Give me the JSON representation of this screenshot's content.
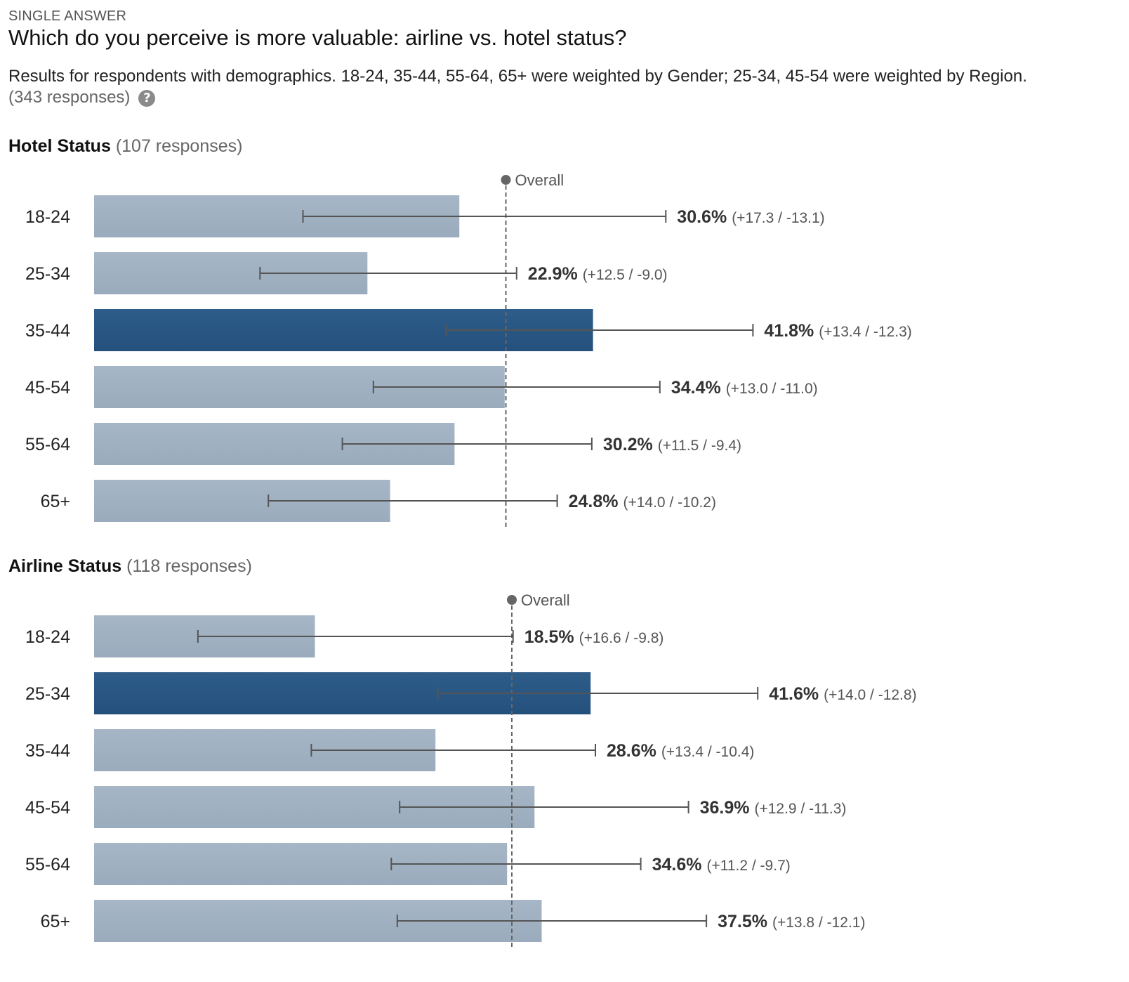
{
  "question": {
    "type_label": "SINGLE ANSWER",
    "title": "Which do you perceive is more valuable: airline vs. hotel status?",
    "description": "Results for respondents with demographics. 18-24, 35-44, 55-64, 65+ were weighted by Gender; 25-34, 45-54 were weighted by Region.",
    "responses": "(343 responses)",
    "help_icon": "question-circle-icon"
  },
  "colors": {
    "bar_default": "#9aabbd",
    "bar_highlight": "#24507c",
    "error_bar": "#555555",
    "overall_line": "#666666"
  },
  "chart_data": [
    {
      "type": "bar",
      "orientation": "horizontal",
      "title": "Hotel Status",
      "responses": "(107 responses)",
      "overall_label": "Overall",
      "overall_value": 34.5,
      "xlim": [
        0,
        60
      ],
      "grid": false,
      "categories": [
        "18-24",
        "25-34",
        "35-44",
        "45-54",
        "55-64",
        "65+"
      ],
      "values": [
        30.6,
        22.9,
        41.8,
        34.4,
        30.2,
        24.8
      ],
      "err_plus": [
        17.3,
        12.5,
        13.4,
        13.0,
        11.5,
        14.0
      ],
      "err_minus": [
        13.1,
        9.0,
        12.3,
        11.0,
        9.4,
        10.2
      ],
      "value_labels": [
        "30.6%",
        "22.9%",
        "41.8%",
        "34.4%",
        "30.2%",
        "24.8%"
      ],
      "interval_labels": [
        "(+17.3 / -13.1)",
        "(+12.5 / -9.0)",
        "(+13.4 / -12.3)",
        "(+13.0 / -11.0)",
        "(+11.5 / -9.4)",
        "(+14.0 / -10.2)"
      ],
      "highlighted": [
        false,
        false,
        true,
        false,
        false,
        false
      ]
    },
    {
      "type": "bar",
      "orientation": "horizontal",
      "title": "Airline Status",
      "responses": "(118 responses)",
      "overall_label": "Overall",
      "overall_value": 35.0,
      "xlim": [
        0,
        60
      ],
      "grid": false,
      "categories": [
        "18-24",
        "25-34",
        "35-44",
        "45-54",
        "55-64",
        "65+"
      ],
      "values": [
        18.5,
        41.6,
        28.6,
        36.9,
        34.6,
        37.5
      ],
      "err_plus": [
        16.6,
        14.0,
        13.4,
        12.9,
        11.2,
        13.8
      ],
      "err_minus": [
        9.8,
        12.8,
        10.4,
        11.3,
        9.7,
        12.1
      ],
      "value_labels": [
        "18.5%",
        "41.6%",
        "28.6%",
        "36.9%",
        "34.6%",
        "37.5%"
      ],
      "interval_labels": [
        "(+16.6 / -9.8)",
        "(+14.0 / -12.8)",
        "(+13.4 / -10.4)",
        "(+12.9 / -11.3)",
        "(+11.2 / -9.7)",
        "(+13.8 / -12.1)"
      ],
      "highlighted": [
        false,
        true,
        false,
        false,
        false,
        false
      ]
    }
  ]
}
